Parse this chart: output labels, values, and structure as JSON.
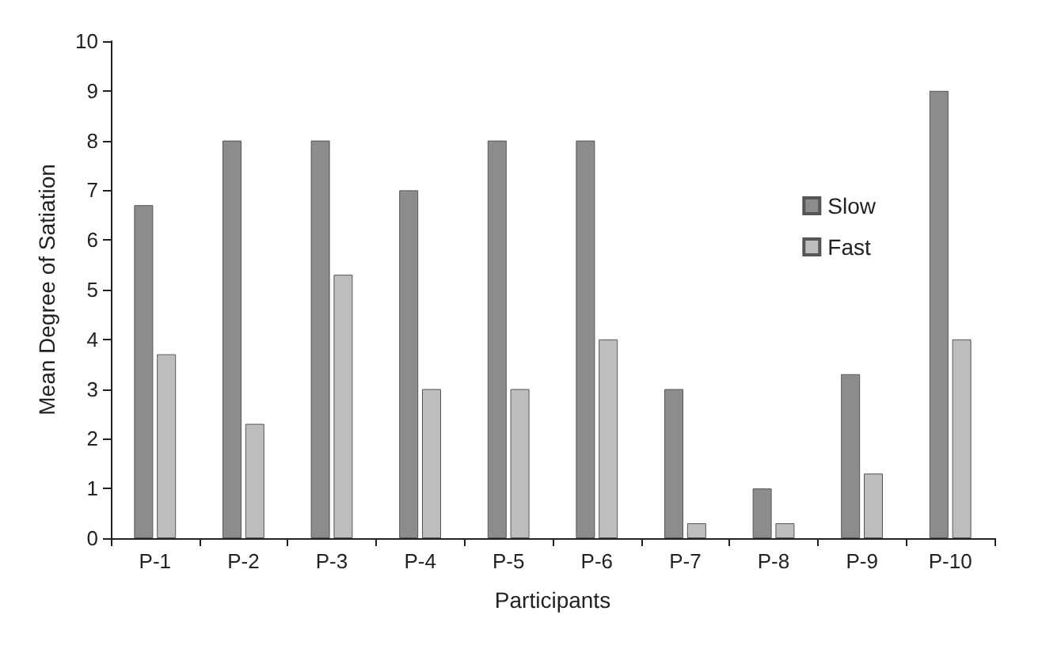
{
  "chart_data": {
    "type": "bar",
    "xlabel": "Participants",
    "ylabel": "Mean Degree of Satiation",
    "categories": [
      "P-1",
      "P-2",
      "P-3",
      "P-4",
      "P-5",
      "P-6",
      "P-7",
      "P-8",
      "P-9",
      "P-10"
    ],
    "series": [
      {
        "name": "Slow",
        "color": "#8c8c8c",
        "values": [
          6.7,
          8,
          8,
          7,
          8,
          8,
          3,
          1,
          3.3,
          9
        ]
      },
      {
        "name": "Fast",
        "color": "#bdbdbd",
        "values": [
          3.7,
          2.3,
          5.3,
          3,
          3,
          4,
          0.3,
          0.3,
          1.3,
          4
        ]
      }
    ],
    "ylim": [
      0,
      10
    ],
    "yticks": [
      0,
      1,
      2,
      3,
      4,
      5,
      6,
      7,
      8,
      9,
      10
    ],
    "grid": false,
    "legend": "top right"
  }
}
